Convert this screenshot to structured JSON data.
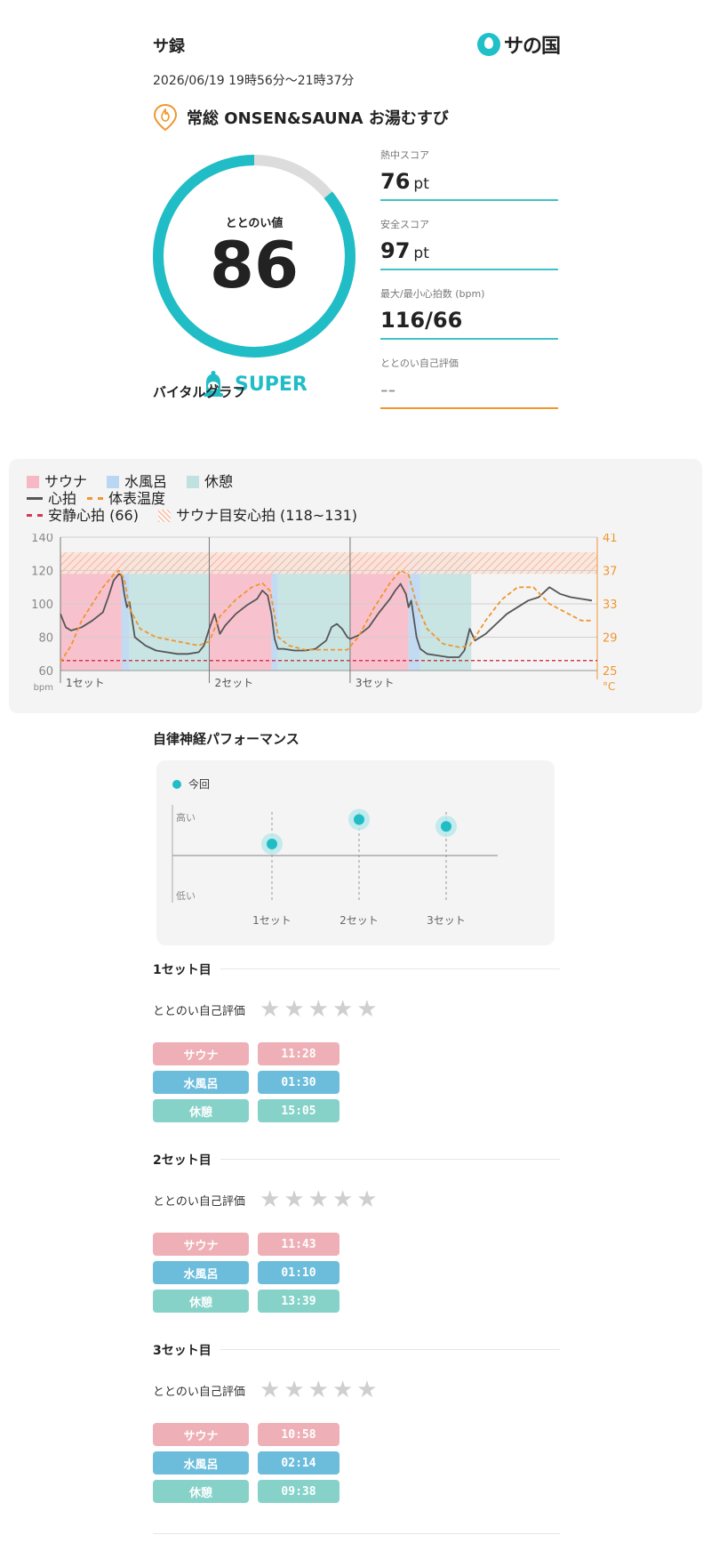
{
  "header": {
    "title": "サ録",
    "logo_text": "サの国"
  },
  "date": "2026/06/19 19時56分〜21時37分",
  "facility": {
    "name": "常総 ONSEN&SAUNA お湯むすび",
    "icon": "fire-pin-icon"
  },
  "totonoi": {
    "label": "ととのい値",
    "value": "86",
    "fraction": 0.86,
    "rank": "SUPER",
    "rank_icon": "bell-mascot-icon"
  },
  "scores": [
    {
      "label": "熱中スコア",
      "value": "76",
      "unit": "pt"
    },
    {
      "label": "安全スコア",
      "value": "97",
      "unit": "pt"
    },
    {
      "label": "最大/最小心拍数 (bpm)",
      "value": "116/66",
      "unit": ""
    },
    {
      "label": "ととのい自己評価",
      "value": "--",
      "unit": ""
    }
  ],
  "colors": {
    "accent": "#21bdc6",
    "orange": "#f0962e",
    "sauna": "#f7b8c6",
    "mizu": "#b9d6f2",
    "rest": "#bfe2e0"
  },
  "vital": {
    "title": "バイタルグラフ",
    "legend": {
      "sauna": "サウナ",
      "mizu": "水風呂",
      "rest": "休憩",
      "hr": "心拍",
      "temp": "体表温度",
      "rest_hr": "安静心拍 (66)",
      "target_hr": "サウナ目安心拍 (118~131)"
    },
    "chart_data": {
      "type": "line",
      "y_left_ticks": [
        "140",
        "120",
        "100",
        "80",
        "60"
      ],
      "y_left_unit": "bpm",
      "y_right_ticks": [
        "41",
        "37",
        "33",
        "29",
        "25"
      ],
      "y_right_unit": "°C",
      "y_left_range": [
        60,
        140
      ],
      "y_right_range": [
        25,
        41
      ],
      "set_labels": [
        "1セット",
        "2セット",
        "3セット"
      ],
      "resting_hr": 66,
      "target_hr_range": [
        118,
        131
      ],
      "x_minutes_range": [
        0,
        101
      ],
      "segments": [
        {
          "phase": "sauna",
          "start": 0,
          "end": 11.5
        },
        {
          "phase": "mizu",
          "start": 11.5,
          "end": 13
        },
        {
          "phase": "rest",
          "start": 13,
          "end": 28
        },
        {
          "phase": "sauna",
          "start": 28,
          "end": 39.7
        },
        {
          "phase": "mizu",
          "start": 39.7,
          "end": 40.9
        },
        {
          "phase": "rest",
          "start": 40.9,
          "end": 54.5
        },
        {
          "phase": "sauna",
          "start": 54.5,
          "end": 65.5
        },
        {
          "phase": "mizu",
          "start": 65.5,
          "end": 67.7
        },
        {
          "phase": "rest",
          "start": 67.7,
          "end": 77.3
        }
      ],
      "set_starts": [
        0,
        28,
        54.5
      ],
      "series": [
        {
          "name": "心拍",
          "x": [
            0,
            1,
            2,
            4,
            6,
            8,
            9,
            10,
            11,
            11.5,
            12,
            12.5,
            13,
            14,
            16,
            18,
            20,
            22,
            24,
            26,
            27,
            28,
            29,
            30,
            31,
            33,
            35,
            37,
            38,
            39,
            39.7,
            40.3,
            40.9,
            42,
            44,
            46,
            48,
            50,
            51,
            52,
            53,
            54,
            54.5,
            56,
            58,
            60,
            62,
            63,
            64,
            65,
            65.5,
            66,
            67,
            67.7,
            69,
            71,
            73,
            75,
            76,
            77,
            78,
            80,
            82,
            84,
            86,
            88,
            90,
            92,
            94,
            96,
            98,
            100
          ],
          "values": [
            94,
            86,
            84,
            86,
            90,
            95,
            104,
            114,
            118,
            117,
            106,
            98,
            101,
            80,
            75,
            72,
            71,
            70,
            70,
            71,
            75,
            85,
            94,
            82,
            87,
            94,
            99,
            103,
            108,
            105,
            94,
            79,
            73,
            73,
            72,
            72,
            73,
            78,
            86,
            88,
            85,
            80,
            79,
            81,
            86,
            95,
            103,
            108,
            112,
            106,
            98,
            102,
            80,
            73,
            70,
            69,
            68,
            68,
            72,
            85,
            78,
            82,
            88,
            94,
            98,
            102,
            104,
            110,
            106,
            104,
            103,
            102
          ]
        },
        {
          "name": "体表温度",
          "x": [
            0,
            2,
            4,
            6,
            8,
            10,
            11,
            12,
            13,
            15,
            18,
            22,
            26,
            28,
            30,
            33,
            36,
            38,
            39.5,
            41,
            43,
            46,
            50,
            54,
            56,
            59,
            62,
            64,
            65.5,
            67,
            69,
            72,
            75,
            77,
            80,
            83,
            86,
            89,
            92,
            95,
            98,
            100
          ],
          "values": [
            26,
            28,
            31,
            33,
            35,
            36.5,
            37,
            36,
            32.5,
            30,
            29,
            28.5,
            28,
            28.5,
            31.5,
            33.5,
            35,
            35.5,
            34.5,
            29,
            28,
            27.5,
            27.5,
            27.5,
            29,
            32.5,
            35.5,
            37,
            36.5,
            33,
            30,
            28.2,
            27.8,
            28,
            31,
            33.5,
            35,
            35,
            33,
            32,
            31,
            31
          ]
        }
      ]
    }
  },
  "autonomic": {
    "title": "自律神経パフォーマンス",
    "legend": "今回",
    "chart_data": {
      "type": "scatter",
      "y_labels": {
        "high": "高い",
        "low": "低い"
      },
      "categories": [
        "1セット",
        "2セット",
        "3セット"
      ],
      "values": [
        0.6,
        0.85,
        0.78
      ],
      "series_name": "今回"
    }
  },
  "sets": [
    {
      "title": "1セット目",
      "eval_label": "ととのい自己評価",
      "phases": [
        {
          "label": "サウナ",
          "time": "11:28",
          "kind": "sauna"
        },
        {
          "label": "水風呂",
          "time": "01:30",
          "kind": "mizu"
        },
        {
          "label": "休憩",
          "time": "15:05",
          "kind": "rest"
        }
      ]
    },
    {
      "title": "2セット目",
      "eval_label": "ととのい自己評価",
      "phases": [
        {
          "label": "サウナ",
          "time": "11:43",
          "kind": "sauna"
        },
        {
          "label": "水風呂",
          "time": "01:10",
          "kind": "mizu"
        },
        {
          "label": "休憩",
          "time": "13:39",
          "kind": "rest"
        }
      ]
    },
    {
      "title": "3セット目",
      "eval_label": "ととのい自己評価",
      "phases": [
        {
          "label": "サウナ",
          "time": "10:58",
          "kind": "sauna"
        },
        {
          "label": "水風呂",
          "time": "02:14",
          "kind": "mizu"
        },
        {
          "label": "休憩",
          "time": "09:38",
          "kind": "rest"
        }
      ]
    }
  ]
}
